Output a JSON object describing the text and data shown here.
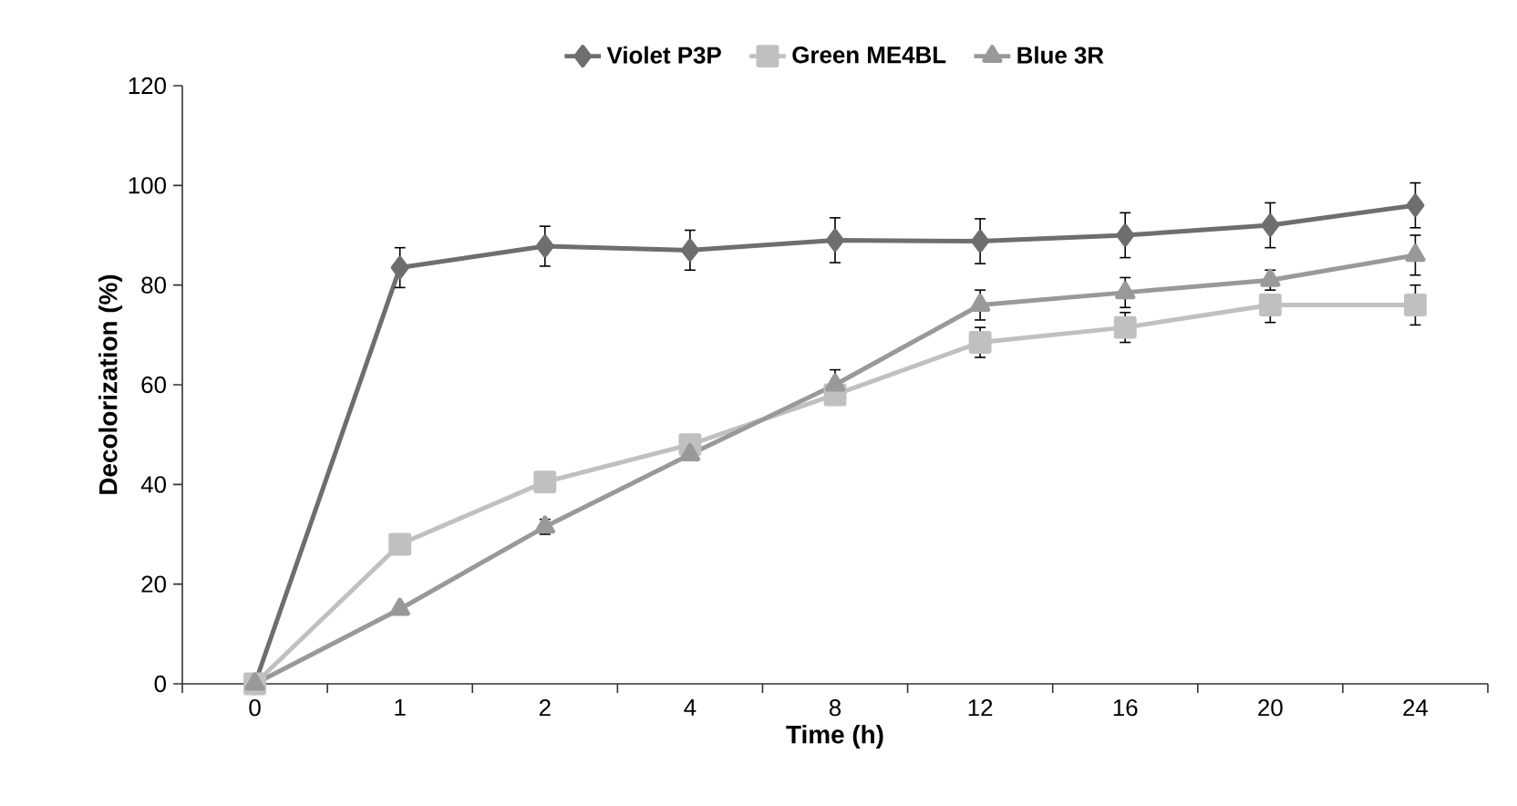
{
  "chart_data": {
    "type": "line",
    "xlabel": "Time (h)",
    "ylabel": "Decolorization (%)",
    "categories": [
      "0",
      "1",
      "2",
      "4",
      "8",
      "12",
      "16",
      "20",
      "24"
    ],
    "ylim": [
      0,
      120
    ],
    "yticks": [
      0,
      20,
      40,
      60,
      80,
      100,
      120
    ],
    "legend": "top",
    "grid": false,
    "line_style": "solid",
    "series": [
      {
        "name": "Violet P3P",
        "color": "#6e6e6e",
        "marker": "diamond",
        "values": [
          0,
          83.5,
          87.8,
          87,
          89,
          88.8,
          90,
          92,
          96
        ],
        "errors": [
          null,
          4,
          4,
          4,
          4.5,
          4.5,
          4.5,
          4.5,
          4.5
        ]
      },
      {
        "name": "Green ME4BL",
        "color": "#c0c0c0",
        "marker": "square",
        "values": [
          0,
          28,
          40.5,
          48,
          58,
          68.5,
          71.5,
          76,
          76
        ],
        "errors": [
          null,
          null,
          null,
          null,
          null,
          3,
          3,
          [
            72.5,
            78
          ],
          4
        ]
      },
      {
        "name": "Blue 3R",
        "color": "#999999",
        "marker": "triangle",
        "values": [
          0,
          15,
          31.5,
          46,
          60,
          76,
          78.5,
          81,
          86
        ],
        "errors": [
          null,
          null,
          1.5,
          null,
          3,
          3,
          3,
          2,
          4
        ]
      }
    ]
  }
}
